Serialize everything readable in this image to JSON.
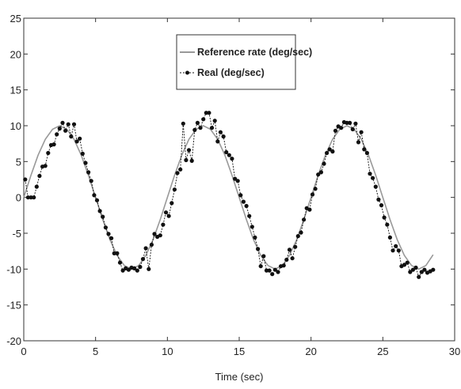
{
  "chart_data": {
    "type": "line",
    "title": "",
    "xlabel": "Time (sec)",
    "ylabel": "",
    "xlim": [
      0,
      30
    ],
    "ylim": [
      -20,
      25
    ],
    "xticks": [
      0,
      5,
      10,
      15,
      20,
      25,
      30
    ],
    "yticks": [
      -20,
      -15,
      -10,
      -5,
      0,
      5,
      10,
      15,
      20,
      25
    ],
    "grid": false,
    "legend_position": "top-center",
    "series": [
      {
        "name": "Reference rate (deg/sec)",
        "color": "#999999",
        "marker": "none",
        "x": [
          0,
          0.5,
          1,
          1.5,
          2,
          2.5,
          3,
          3.5,
          4,
          4.5,
          5,
          5.5,
          6,
          6.5,
          7,
          7.5,
          8,
          8.5,
          9,
          9.5,
          10,
          10.5,
          11,
          11.5,
          12,
          12.5,
          13,
          13.5,
          14,
          14.5,
          15,
          15.5,
          16,
          16.5,
          17,
          17.5,
          18,
          18.5,
          19,
          19.5,
          20,
          20.5,
          21,
          21.5,
          22,
          22.5,
          23,
          23.5,
          24,
          24.5,
          25,
          25.5,
          26,
          26.5,
          27,
          27.5,
          28,
          28.5
        ],
        "y": [
          0,
          3.1,
          5.9,
          8.1,
          9.5,
          10,
          9.5,
          8.1,
          5.9,
          3.1,
          0,
          -3.1,
          -5.9,
          -8.1,
          -9.5,
          -10,
          -9.5,
          -8.1,
          -5.9,
          -3.1,
          0,
          3.1,
          5.9,
          8.1,
          9.5,
          10,
          9.5,
          8.1,
          5.9,
          3.1,
          0,
          -3.1,
          -5.9,
          -8.1,
          -9.5,
          -10,
          -9.5,
          -8.1,
          -5.9,
          -3.1,
          0,
          3.1,
          5.9,
          8.1,
          9.5,
          10,
          9.5,
          8.1,
          5.9,
          3.1,
          0,
          -3.1,
          -5.9,
          -8.1,
          -9.5,
          -10,
          -9.5,
          -8
        ]
      },
      {
        "name": "Real (deg/sec)",
        "color": "#111111",
        "marker": "dot",
        "x": [
          0.1,
          0.3,
          0.5,
          0.7,
          0.9,
          1.1,
          1.3,
          1.5,
          1.7,
          1.9,
          2.1,
          2.3,
          2.5,
          2.7,
          2.9,
          3.1,
          3.3,
          3.5,
          3.7,
          3.9,
          4.1,
          4.3,
          4.5,
          4.7,
          4.9,
          5.1,
          5.3,
          5.5,
          5.7,
          5.9,
          6.1,
          6.3,
          6.5,
          6.7,
          6.9,
          7.1,
          7.3,
          7.5,
          7.7,
          7.9,
          8.1,
          8.3,
          8.5,
          8.7,
          8.9,
          9.1,
          9.3,
          9.5,
          9.7,
          9.9,
          10.1,
          10.3,
          10.5,
          10.7,
          10.9,
          11.1,
          11.3,
          11.5,
          11.7,
          11.9,
          12.1,
          12.3,
          12.5,
          12.7,
          12.9,
          13.1,
          13.3,
          13.5,
          13.7,
          13.9,
          14.1,
          14.3,
          14.5,
          14.7,
          14.9,
          15.1,
          15.3,
          15.5,
          15.7,
          15.9,
          16.1,
          16.3,
          16.5,
          16.7,
          16.9,
          17.1,
          17.3,
          17.5,
          17.7,
          17.9,
          18.1,
          18.3,
          18.5,
          18.7,
          18.9,
          19.1,
          19.3,
          19.5,
          19.7,
          19.9,
          20.1,
          20.3,
          20.5,
          20.7,
          20.9,
          21.1,
          21.3,
          21.5,
          21.7,
          21.9,
          22.1,
          22.3,
          22.5,
          22.7,
          22.9,
          23.1,
          23.3,
          23.5,
          23.7,
          23.9,
          24.1,
          24.3,
          24.5,
          24.7,
          24.9,
          25.1,
          25.3,
          25.5,
          25.7,
          25.9,
          26.1,
          26.3,
          26.5,
          26.7,
          26.9,
          27.1,
          27.3,
          27.5,
          27.7,
          27.9,
          28.1,
          28.3,
          28.5
        ],
        "y": [
          2.5,
          0,
          0,
          0,
          1.5,
          3,
          4.3,
          4.4,
          6.2,
          7.3,
          7.4,
          8.8,
          9.6,
          10.4,
          9.3,
          10.2,
          8.5,
          10.2,
          7.8,
          8.2,
          6.1,
          4.8,
          3.5,
          2.3,
          0.3,
          -0.4,
          -1.9,
          -2.7,
          -4.2,
          -5.1,
          -5.7,
          -7.8,
          -7.8,
          -9.1,
          -10.2,
          -9.9,
          -10.1,
          -9.8,
          -9.9,
          -10.2,
          -9.7,
          -8.6,
          -7.1,
          -10,
          -6.6,
          -5.1,
          -5.5,
          -5.3,
          -3.8,
          -2.1,
          -2.6,
          -0.8,
          1.1,
          3.4,
          3.9,
          10.3,
          5.2,
          6.6,
          5.1,
          9.4,
          10.4,
          9.7,
          10.9,
          11.8,
          11.8,
          9.7,
          10.7,
          7.8,
          9.1,
          8.5,
          6.3,
          5.9,
          5.4,
          2.6,
          2.3,
          0.3,
          -0.6,
          -1.2,
          -2.6,
          -4.1,
          -5.6,
          -7.2,
          -9.6,
          -8.2,
          -10.2,
          -10.2,
          -10.7,
          -10.1,
          -10.4,
          -9.6,
          -9.5,
          -8.7,
          -7.3,
          -8.5,
          -6.9,
          -5.4,
          -4.9,
          -3.1,
          -1.5,
          -1.7,
          0.4,
          1.2,
          3.2,
          3.5,
          4.7,
          6.2,
          6.7,
          6.4,
          9.3,
          9.9,
          9.7,
          10.5,
          10.4,
          10.4,
          9.5,
          10.3,
          7.7,
          9.1,
          6.7,
          6.2,
          3.3,
          2.7,
          1.5,
          -0.3,
          -1.1,
          -2.8,
          -3.8,
          -5.6,
          -7.4,
          -6.8,
          -7.4,
          -9.6,
          -9.4,
          -9.1,
          -10.4,
          -10.1,
          -9.8,
          -11.1,
          -10.4,
          -10.1,
          -10.5,
          -10.3,
          -10.1
        ]
      }
    ]
  }
}
